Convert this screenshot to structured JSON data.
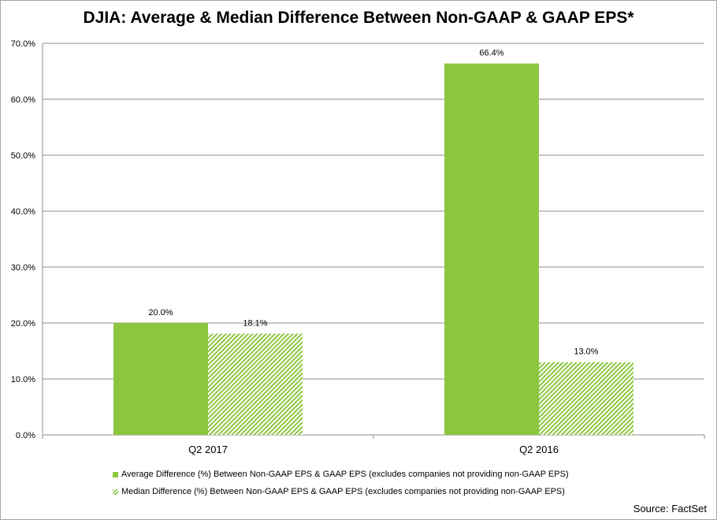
{
  "title": "DJIA: Average & Median Difference Between Non-GAAP & GAAP EPS*",
  "source": "Source: FactSet",
  "colors": {
    "bar": "#8cc63f",
    "grid": "#8c8c8c",
    "axis": "#8c8c8c"
  },
  "chart_data": {
    "type": "bar",
    "categories": [
      "Q2 2017",
      "Q2 2016"
    ],
    "series": [
      {
        "name": "Average Difference (%) Between Non-GAAP EPS & GAAP EPS (excludes companies not providing non-GAAP EPS)",
        "values": [
          20.0,
          66.4
        ],
        "labels": [
          "20.0%",
          "66.4%"
        ],
        "fill": "solid"
      },
      {
        "name": "Median Difference (%) Between Non-GAAP EPS & GAAP EPS (excludes companies not providing non-GAAP EPS)",
        "values": [
          18.1,
          13.0
        ],
        "labels": [
          "18.1%",
          "13.0%"
        ],
        "fill": "hatched"
      }
    ],
    "ylim": [
      0,
      70
    ],
    "yticks": [
      "0.0%",
      "10.0%",
      "20.0%",
      "30.0%",
      "40.0%",
      "50.0%",
      "60.0%",
      "70.0%"
    ],
    "grid": true,
    "legend_position": "bottom"
  }
}
